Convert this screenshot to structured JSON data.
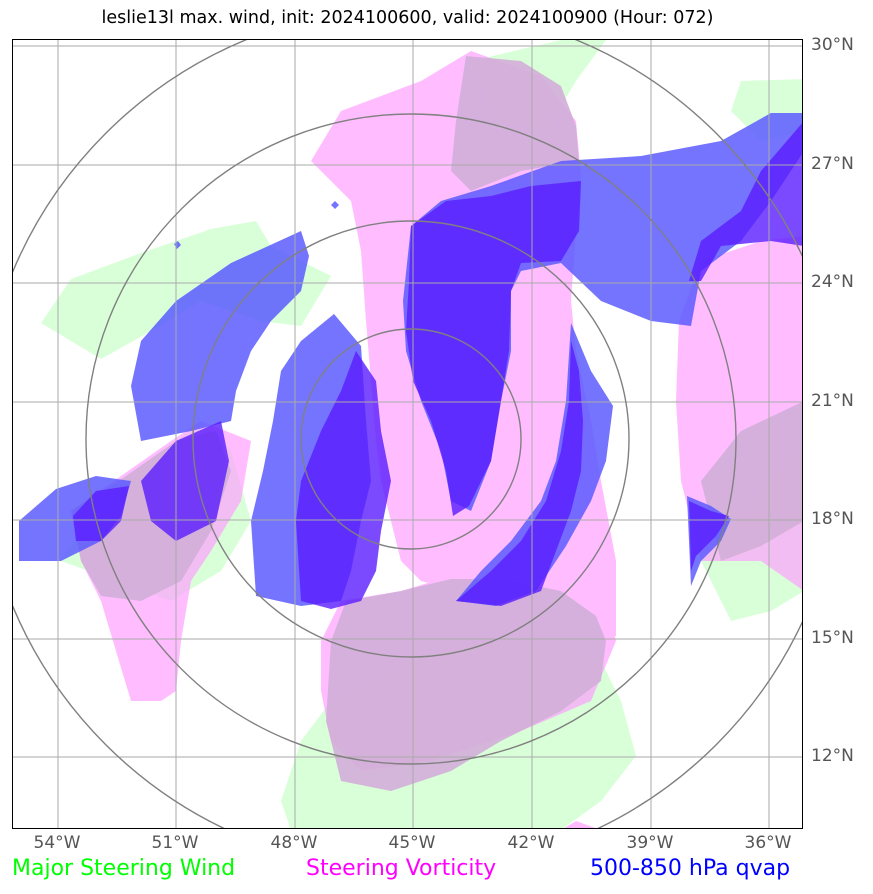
{
  "title": "leslie13l max. wind, init: 2024100600, valid: 2024100900 (Hour: 072)",
  "axes": {
    "lat_labels": [
      "30°N",
      "27°N",
      "24°N",
      "21°N",
      "18°N",
      "15°N",
      "12°N"
    ],
    "lon_labels": [
      "54°W",
      "51°W",
      "48°W",
      "45°W",
      "42°W",
      "39°W",
      "36°W"
    ]
  },
  "legend": {
    "wind": {
      "label": "Major Steering Wind",
      "color": "#00ff00"
    },
    "vorticity": {
      "label": "Steering Vorticity",
      "color": "#ff00ff"
    },
    "qvap": {
      "label": "500-850 hPa qvap",
      "color": "#0000ff"
    }
  },
  "map": {
    "lon_range": [
      "55.2°W",
      "35.2°W"
    ],
    "lat_range": [
      "9.8°N",
      "29.8°N"
    ],
    "storm": "leslie13l",
    "range_rings": 4,
    "colors": {
      "wind": "#ccffcc",
      "vorticity": "#ff99ff",
      "qvap_light": "#5c5cff",
      "qvap_dark": "#5a1dff",
      "overlap": "#d9b3e0",
      "grid": "#aaaaaa",
      "rings": "#808080"
    }
  }
}
